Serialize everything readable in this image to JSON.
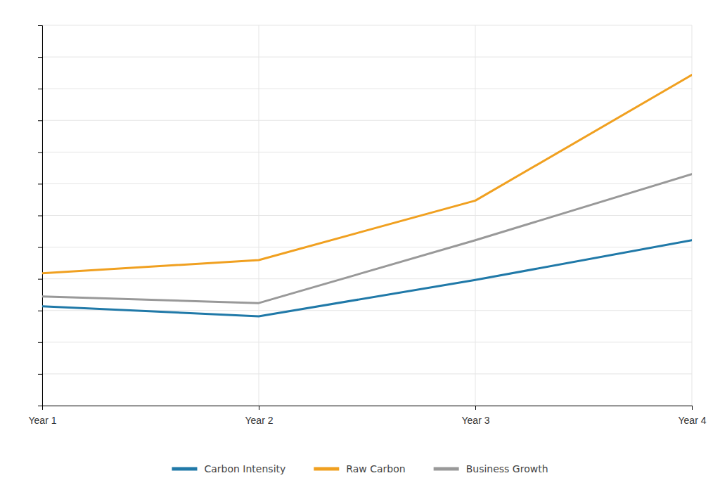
{
  "chart_data": {
    "type": "line",
    "x": [
      1,
      2,
      3,
      4
    ],
    "xticks": [
      {
        "value": 1,
        "label": "Year 1"
      },
      {
        "value": 2,
        "label": "Year 2"
      },
      {
        "value": 3,
        "label": "Year 3"
      },
      {
        "value": 4,
        "label": "Year 4"
      }
    ],
    "xlim": [
      1.0,
      4.0
    ],
    "ylim": [
      0.0,
      1.15
    ],
    "yticks": [
      0,
      0.09583333333333334,
      0.19166666666666668,
      0.2875,
      0.38333333333333336,
      0.4791666666666667,
      0.575,
      0.6708333333333334,
      0.7666666666666667,
      0.8625,
      0.9583333333333334,
      1.0541666666666667,
      1.15
    ],
    "series": [
      {
        "name": "Carbon Intensity",
        "color": "#2079A8",
        "values": [
          0.3,
          0.27,
          0.38,
          0.5
        ]
      },
      {
        "name": "Raw Carbon",
        "color": "#F0A020",
        "values": [
          0.4,
          0.44,
          0.62,
          1.0
        ]
      },
      {
        "name": "Business Growth",
        "color": "#999999",
        "values": [
          0.33,
          0.31,
          0.5,
          0.7
        ]
      }
    ],
    "grid": true,
    "legend": "bottom",
    "tick_labels": "x"
  }
}
